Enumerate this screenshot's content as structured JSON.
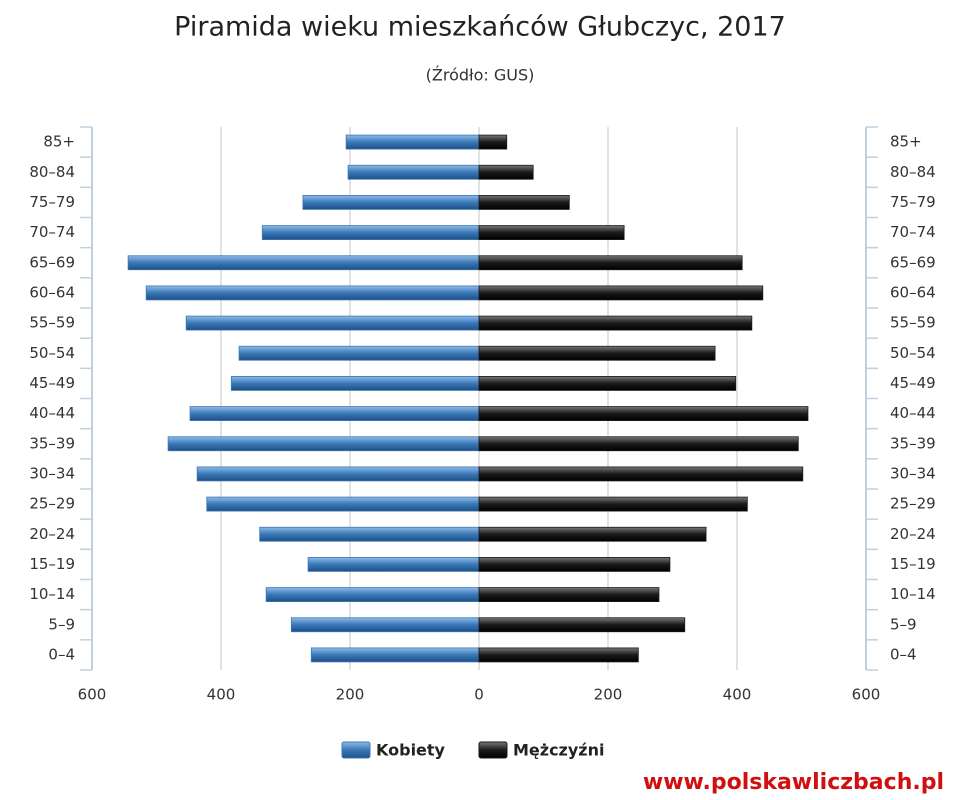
{
  "chart_data": {
    "type": "pyramid",
    "title": "Piramida wieku mieszkańców Głubczyc, 2017",
    "subtitle": "(Źródło: GUS)",
    "categories": [
      "85+",
      "80–84",
      "75–79",
      "70–74",
      "65–69",
      "60–64",
      "55–59",
      "50–54",
      "45–49",
      "40–44",
      "35–39",
      "30–34",
      "25–29",
      "20–24",
      "15–19",
      "10–14",
      "5–9",
      "0–4"
    ],
    "series": [
      {
        "name": "Kobiety",
        "color": "#3a78b8",
        "side": "left",
        "values": [
          206,
          203,
          273,
          336,
          544,
          516,
          454,
          372,
          384,
          448,
          482,
          437,
          422,
          340,
          265,
          330,
          291,
          260
        ]
      },
      {
        "name": "Mężczyźni",
        "color": "#1a1a1a",
        "side": "right",
        "values": [
          43,
          84,
          140,
          225,
          408,
          440,
          423,
          366,
          398,
          510,
          495,
          502,
          416,
          352,
          296,
          279,
          319,
          247
        ]
      }
    ],
    "xlim": [
      -600,
      600
    ],
    "xticks": [
      {
        "value": -600,
        "label": "600"
      },
      {
        "value": -400,
        "label": "400"
      },
      {
        "value": -200,
        "label": "200"
      },
      0,
      200,
      400,
      600
    ],
    "grid": true,
    "source": "www.polskawliczbach.pl"
  }
}
